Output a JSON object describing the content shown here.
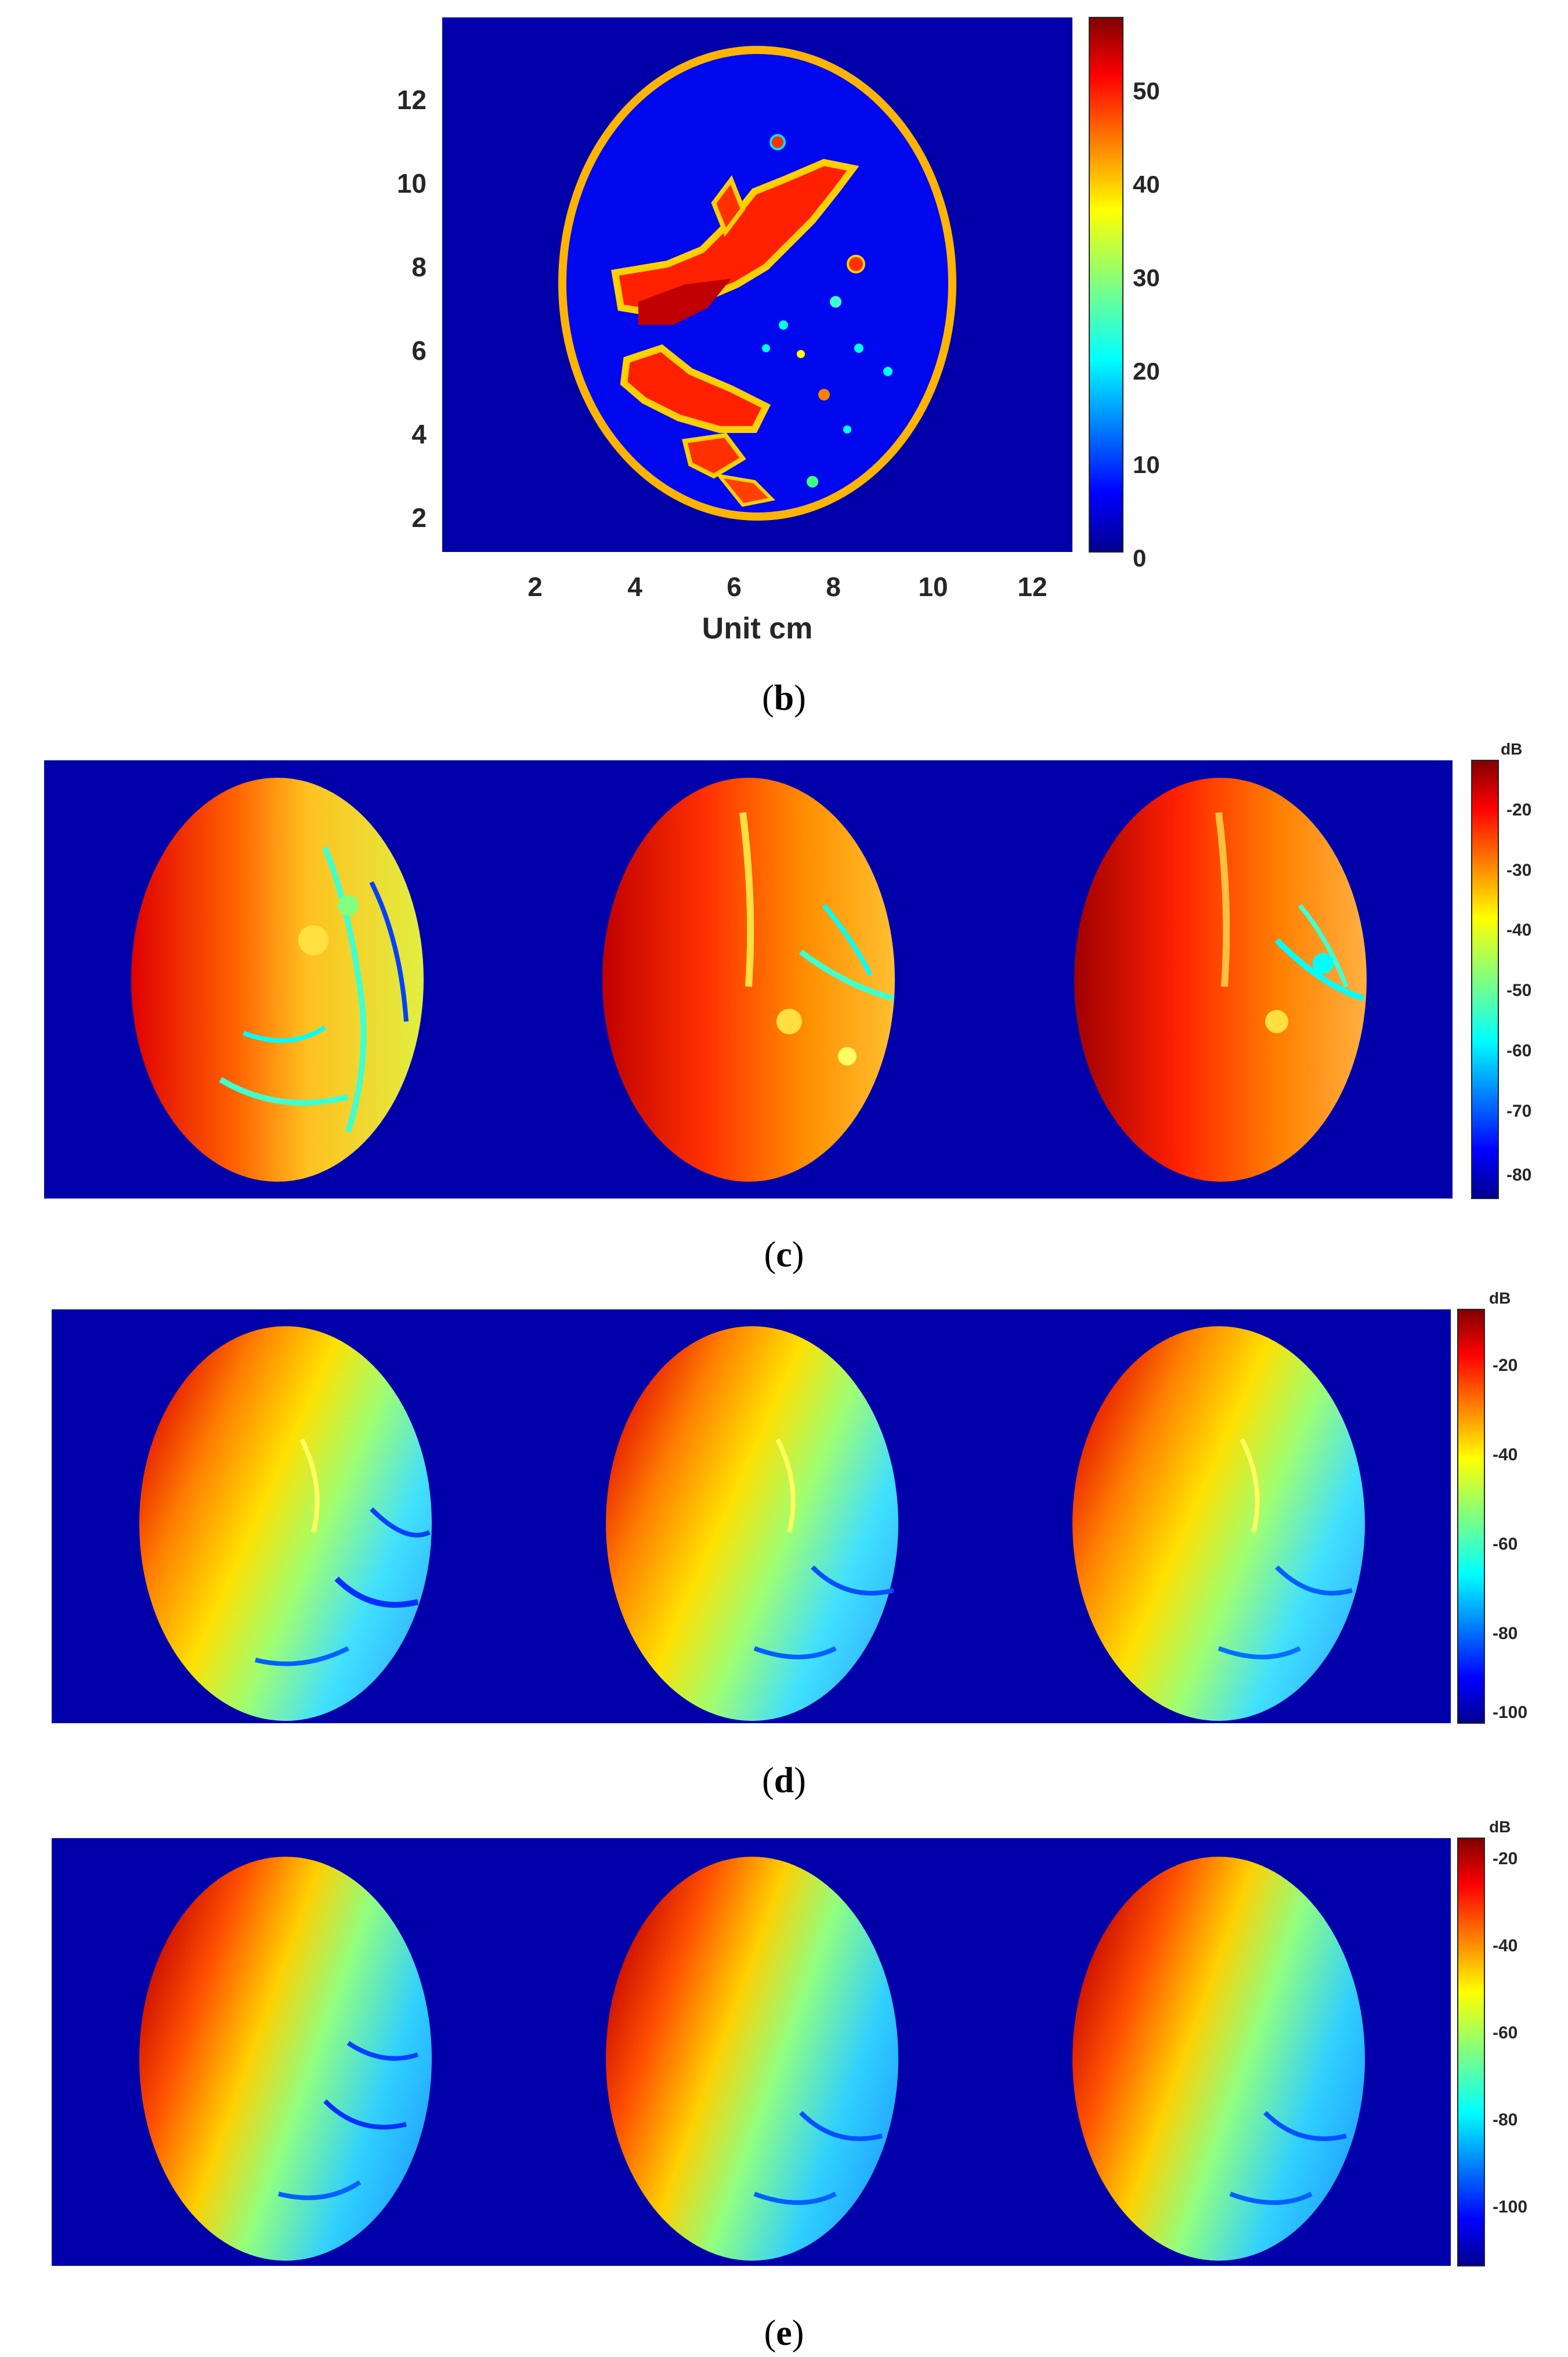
{
  "colors": {
    "background_blue": "#0000aa",
    "outline_orange": "#ffb400",
    "colormap": [
      "#00008f",
      "#0000ff",
      "#0080ff",
      "#00ffff",
      "#80ff80",
      "#ffff00",
      "#ff8000",
      "#ff0000",
      "#800000"
    ]
  },
  "figure_b": {
    "caption_letter": "b",
    "xlabel": "Unit cm",
    "x_ticks": [
      "2",
      "4",
      "6",
      "8",
      "10",
      "12"
    ],
    "y_ticks": [
      "12",
      "10",
      "8",
      "6",
      "4",
      "2"
    ],
    "colorbar_ticks": [
      "50",
      "40",
      "30",
      "20",
      "10",
      "0"
    ]
  },
  "figure_c": {
    "caption_letter": "c",
    "colorbar_unit": "dB",
    "colorbar_ticks": [
      "-20",
      "-30",
      "-40",
      "-50",
      "-60",
      "-70",
      "-80"
    ]
  },
  "figure_d": {
    "caption_letter": "d",
    "colorbar_unit": "dB",
    "colorbar_ticks": [
      "-20",
      "-40",
      "-60",
      "-80",
      "-100"
    ]
  },
  "figure_e": {
    "caption_letter": "e",
    "colorbar_unit": "dB",
    "colorbar_ticks": [
      "-20",
      "-40",
      "-60",
      "-80",
      "-100"
    ]
  },
  "chart_data": [
    {
      "type": "heatmap",
      "panel": "b",
      "xlabel": "Unit cm",
      "xlim": [
        0,
        13
      ],
      "ylim": [
        1,
        14
      ],
      "x_ticks": [
        2,
        4,
        6,
        8,
        10,
        12
      ],
      "y_ticks": [
        2,
        4,
        6,
        8,
        10,
        12
      ],
      "colorbar_range": [
        0,
        57
      ],
      "colorbar_ticks": [
        0,
        10,
        20,
        30,
        40,
        50
      ]
    },
    {
      "type": "heatmap",
      "panel": "c",
      "images": 3,
      "colorbar_unit": "dB",
      "colorbar_range": [
        -82,
        -15
      ],
      "colorbar_ticks": [
        -80,
        -70,
        -60,
        -50,
        -40,
        -30,
        -20
      ]
    },
    {
      "type": "heatmap",
      "panel": "d",
      "images": 3,
      "colorbar_unit": "dB",
      "colorbar_range": [
        -102,
        -10
      ],
      "colorbar_ticks": [
        -100,
        -80,
        -60,
        -40,
        -20
      ]
    },
    {
      "type": "heatmap",
      "panel": "e",
      "images": 3,
      "colorbar_unit": "dB",
      "colorbar_range": [
        -118,
        -15
      ],
      "colorbar_ticks": [
        -100,
        -80,
        -60,
        -40,
        -20
      ]
    }
  ]
}
